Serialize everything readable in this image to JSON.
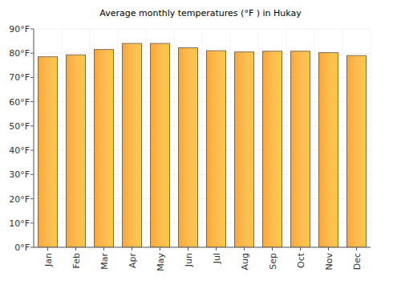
{
  "chart_data": {
    "type": "bar",
    "title": "Average monthly temperatures (°F ) in Hukay",
    "categories": [
      "Jan",
      "Feb",
      "Mar",
      "Apr",
      "May",
      "Jun",
      "Jul",
      "Aug",
      "Sep",
      "Oct",
      "Nov",
      "Dec"
    ],
    "values": [
      78.5,
      79.3,
      81.5,
      84,
      84,
      82.2,
      81,
      80.5,
      80.8,
      80.8,
      80.2,
      79
    ],
    "color": "#fba72f",
    "ylim": [
      0,
      90
    ],
    "yticks": [
      {
        "value": 0,
        "label": "0°F"
      },
      {
        "value": 10,
        "label": "10°F"
      },
      {
        "value": 20,
        "label": "20°F"
      },
      {
        "value": 30,
        "label": "30°F"
      },
      {
        "value": 40,
        "label": "40°F"
      },
      {
        "value": 50,
        "label": "50°F"
      },
      {
        "value": 60,
        "label": "60°F"
      },
      {
        "value": 70,
        "label": "70°F"
      },
      {
        "value": 80,
        "label": "80°F"
      },
      {
        "value": 90,
        "label": "90°F"
      }
    ],
    "grid": true
  }
}
